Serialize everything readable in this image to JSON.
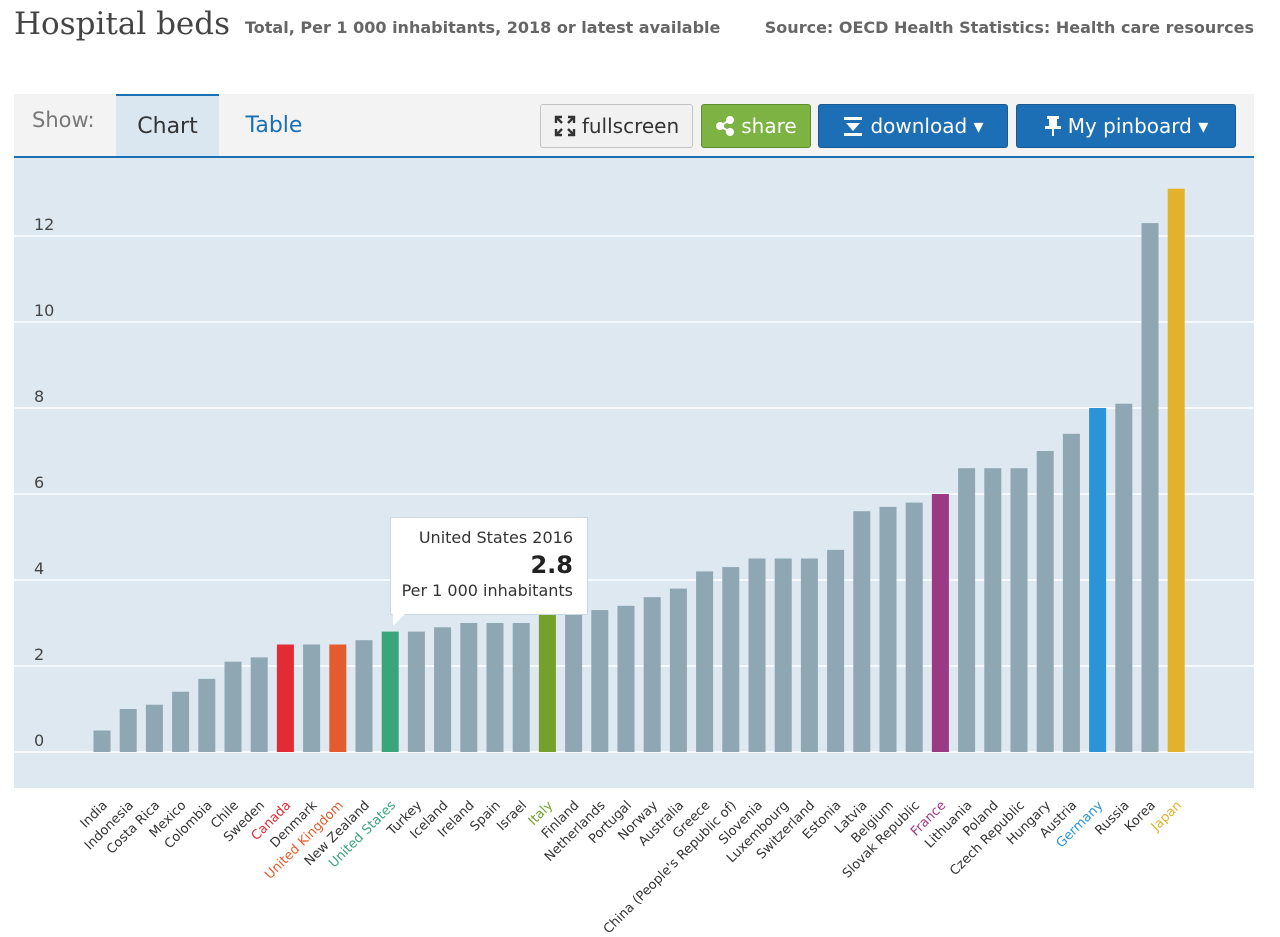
{
  "header": {
    "title": "Hospital beds",
    "subtitle": "Total, Per 1 000 inhabitants, 2018 or latest available",
    "source": "Source: OECD Health Statistics: Health care resources"
  },
  "toolbar": {
    "show_label": "Show:",
    "tab_chart": "Chart",
    "tab_table": "Table",
    "fullscreen_label": "fullscreen",
    "share_label": "share",
    "download_label": "download ▾",
    "pinboard_label": "My pinboard ▾"
  },
  "tooltip": {
    "title": "United States 2016",
    "value": "2.8",
    "unit": "Per 1 000 inhabitants"
  },
  "colors": {
    "default_bar": "#8fa6b3",
    "canada": "#e32b35",
    "united_kingdom": "#e35b2e",
    "united_states": "#3aa57c",
    "italy": "#74a12c",
    "france": "#9b3985",
    "germany": "#2b93d6",
    "japan": "#e3b22b"
  },
  "chart_data": {
    "type": "bar",
    "title": "Hospital beds",
    "ylabel": "Per 1 000 inhabitants",
    "ylim": [
      0,
      13
    ],
    "yticks": [
      0,
      2,
      4,
      6,
      8,
      10,
      12
    ],
    "categories": [
      "India",
      "Indonesia",
      "Costa Rica",
      "Mexico",
      "Colombia",
      "Chile",
      "Sweden",
      "Canada",
      "Denmark",
      "United Kingdom",
      "New Zealand",
      "United States",
      "Turkey",
      "Iceland",
      "Ireland",
      "Spain",
      "Israel",
      "Italy",
      "Finland",
      "Netherlands",
      "Portugal",
      "Norway",
      "Australia",
      "Greece",
      "China (People's Republic of)",
      "Slovenia",
      "Luxembourg",
      "Switzerland",
      "Estonia",
      "Latvia",
      "Belgium",
      "Slovak Republic",
      "France",
      "Lithuania",
      "Poland",
      "Czech Republic",
      "Hungary",
      "Austria",
      "Germany",
      "Russia",
      "Korea",
      "Japan"
    ],
    "values": [
      0.5,
      1.0,
      1.1,
      1.4,
      1.7,
      2.1,
      2.2,
      2.5,
      2.5,
      2.5,
      2.6,
      2.8,
      2.8,
      2.9,
      3.0,
      3.0,
      3.0,
      3.2,
      3.2,
      3.3,
      3.4,
      3.6,
      3.8,
      4.2,
      4.3,
      4.5,
      4.5,
      4.5,
      4.7,
      5.6,
      5.7,
      5.8,
      6.0,
      6.6,
      6.6,
      6.6,
      7.0,
      7.4,
      8.0,
      8.1,
      12.3,
      13.1
    ],
    "highlight": {
      "Canada": "#e32b35",
      "United Kingdom": "#e35b2e",
      "United States": "#3aa57c",
      "Italy": "#74a12c",
      "France": "#9b3985",
      "Germany": "#2b93d6",
      "Japan": "#e3b22b"
    }
  }
}
